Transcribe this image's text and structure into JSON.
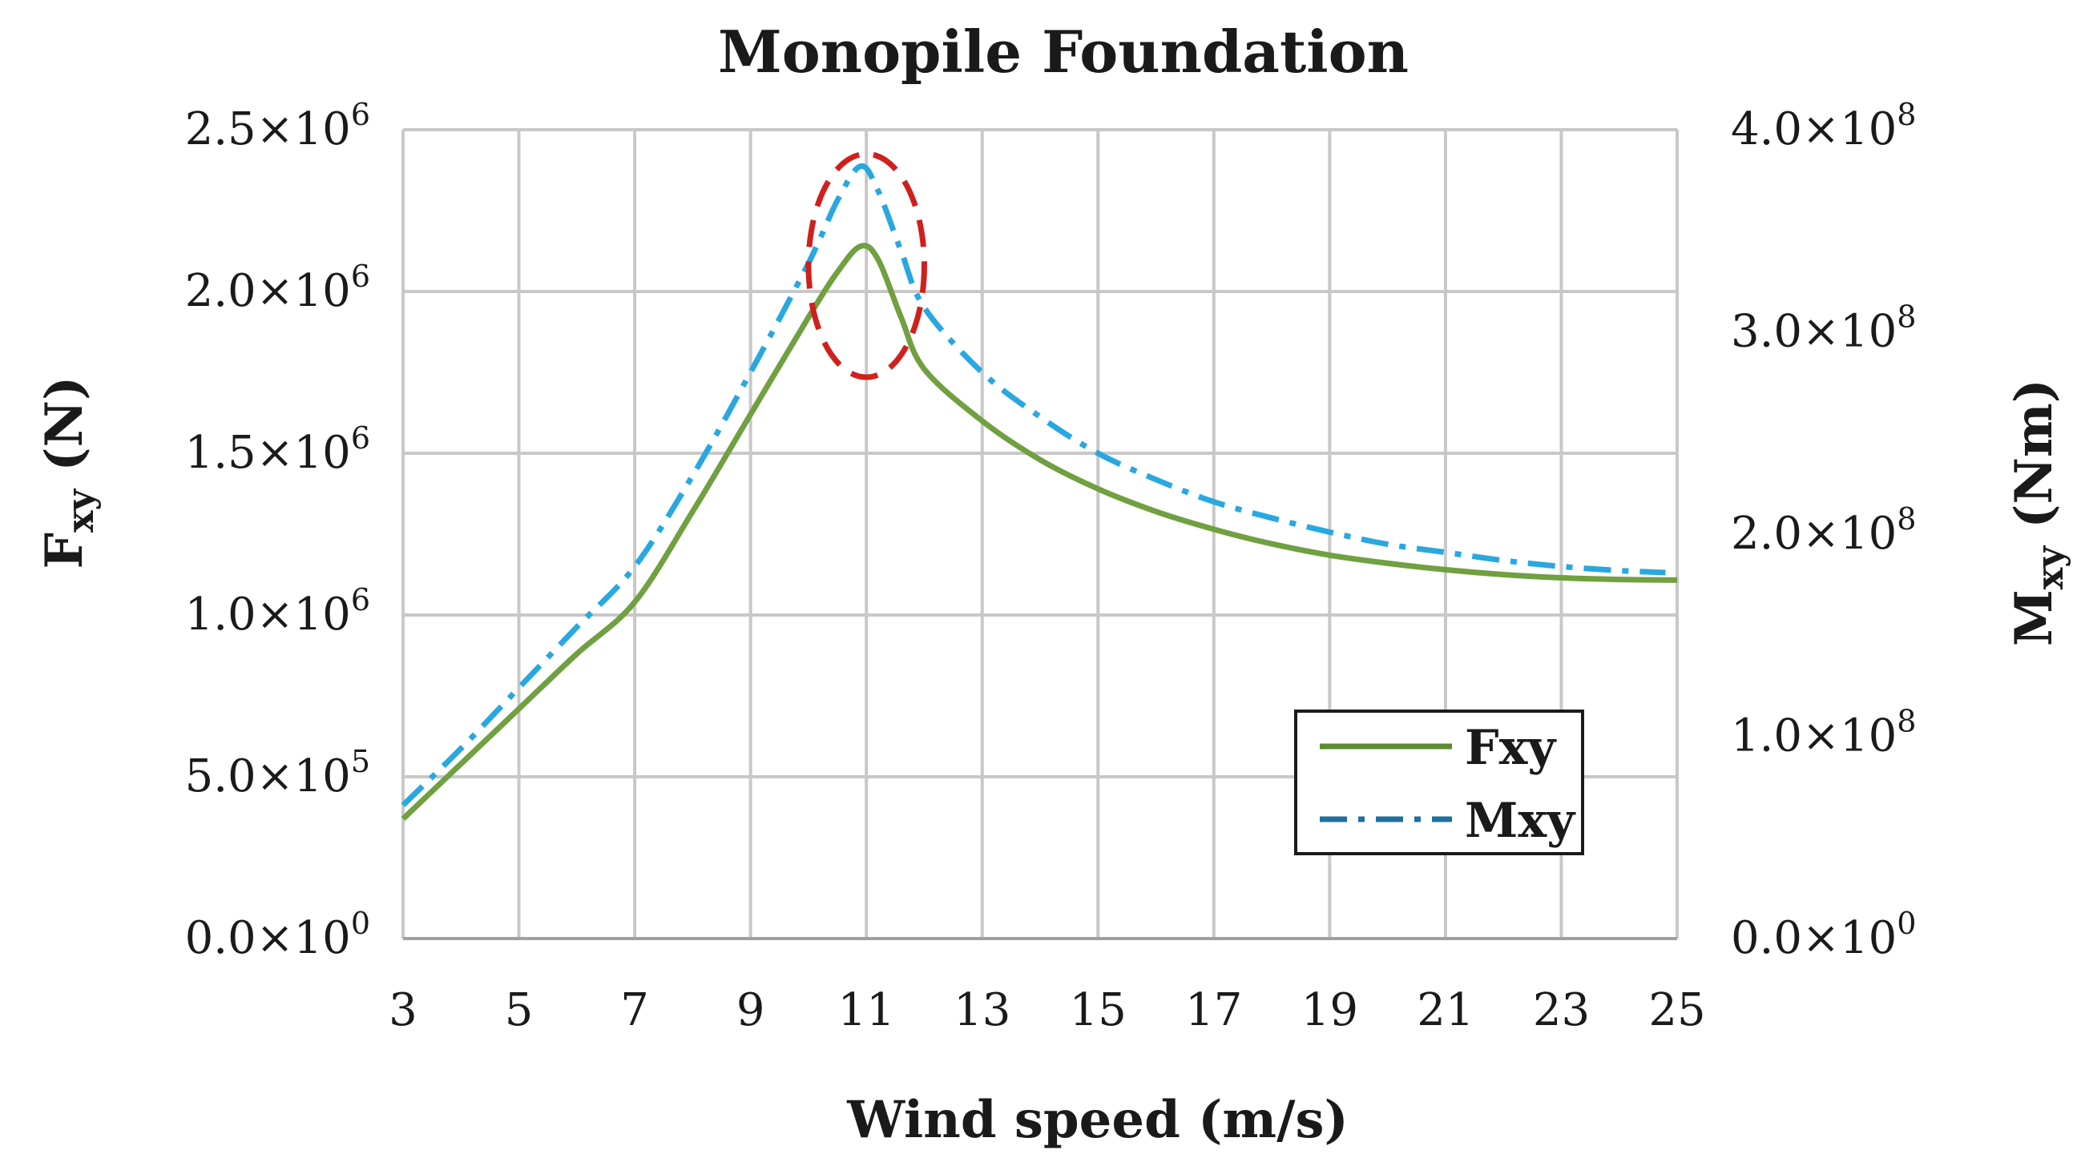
{
  "chart_data": {
    "type": "line",
    "title": "Monopile Foundation",
    "xlabel": "Wind speed (m/s)",
    "ylabel_left": {
      "main": "F",
      "sub": "xy",
      "unit": " (N)"
    },
    "ylabel_right": {
      "main": "M",
      "sub": "xy",
      "unit": " (Nm)"
    },
    "xlim": [
      3,
      25
    ],
    "ylim_left": [
      0,
      2500000
    ],
    "ylim_right": [
      0,
      400000000
    ],
    "x_ticks": [
      "3",
      "5",
      "7",
      "9",
      "11",
      "13",
      "15",
      "17",
      "19",
      "21",
      "23",
      "25"
    ],
    "y_ticks_left": [
      {
        "value": 0,
        "mant": "0.0×10",
        "exp": "0"
      },
      {
        "value": 500000,
        "mant": "5.0×10",
        "exp": "5"
      },
      {
        "value": 1000000,
        "mant": "1.0×10",
        "exp": "6"
      },
      {
        "value": 1500000,
        "mant": "1.5×10",
        "exp": "6"
      },
      {
        "value": 2000000,
        "mant": "2.0×10",
        "exp": "6"
      },
      {
        "value": 2500000,
        "mant": "2.5×10",
        "exp": "6"
      }
    ],
    "y_ticks_right": [
      {
        "value": 0,
        "mant": "0.0×10",
        "exp": "0"
      },
      {
        "value": 100000000,
        "mant": "1.0×10",
        "exp": "8"
      },
      {
        "value": 200000000,
        "mant": "2.0×10",
        "exp": "8"
      },
      {
        "value": 300000000,
        "mant": "3.0×10",
        "exp": "8"
      },
      {
        "value": 400000000,
        "mant": "4.0×10",
        "exp": "8"
      }
    ],
    "grid": true,
    "legend_position": "bottom-right",
    "series": [
      {
        "name": "Fxy",
        "axis": "left",
        "style": "solid",
        "color": "#70a040",
        "x": [
          3,
          4,
          5,
          6,
          7,
          8,
          9,
          10,
          10.5,
          10.9,
          11.2,
          11.6,
          12,
          13,
          14,
          15,
          16,
          17,
          18,
          19,
          20,
          21,
          22,
          23,
          24,
          25
        ],
        "y": [
          370000,
          540000,
          710000,
          880000,
          1040000,
          1320000,
          1620000,
          1920000,
          2060000,
          2140000,
          2100000,
          1920000,
          1760000,
          1600000,
          1480000,
          1390000,
          1320000,
          1265000,
          1220000,
          1185000,
          1160000,
          1140000,
          1125000,
          1115000,
          1110000,
          1108000
        ]
      },
      {
        "name": "Mxy",
        "axis": "right",
        "style": "dash-dot",
        "color": "#29a8e0",
        "x": [
          3,
          4,
          5,
          6,
          7,
          8,
          9,
          10,
          10.5,
          10.9,
          11.2,
          11.6,
          12,
          13,
          14,
          15,
          16,
          17,
          18,
          19,
          20,
          21,
          22,
          23,
          24,
          24.8
        ],
        "y": [
          66000000,
          94000000,
          124000000,
          154000000,
          184000000,
          229000000,
          280000000,
          334000000,
          365000000,
          382000000,
          370000000,
          340000000,
          312000000,
          280000000,
          258000000,
          240000000,
          227000000,
          216000000,
          208000000,
          201000000,
          195000000,
          191000000,
          187000000,
          184000000,
          182000000,
          181000000
        ]
      }
    ],
    "annotations": [
      {
        "type": "dashed-circle",
        "color": "#d0201e",
        "center_x": 11,
        "center_y_left": 2080000,
        "radius_x_units": 1,
        "radius_y_left_units": 345000
      }
    ],
    "legend": [
      {
        "label": "Fxy",
        "series": 0
      },
      {
        "label": "Mxy",
        "series": 1
      }
    ]
  }
}
